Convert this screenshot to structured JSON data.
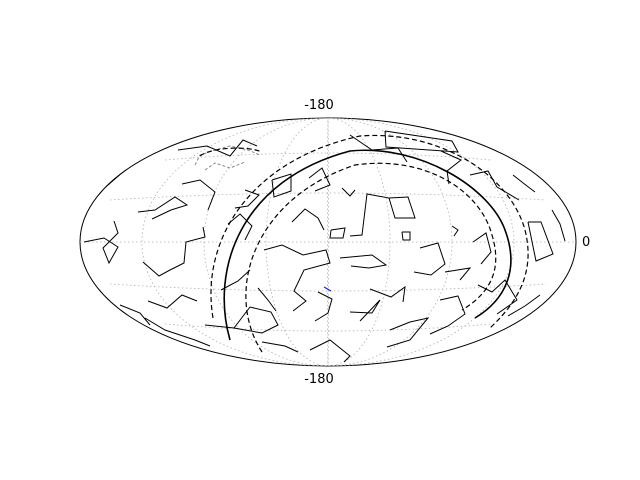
{
  "map": {
    "projection": "aitoff",
    "labels": {
      "top": "-180",
      "bottom": "-180",
      "right": "0"
    },
    "grid": {
      "visible": true,
      "style": "dotted",
      "color": "#b0b0b0"
    },
    "colors": {
      "outline": "#000000",
      "constellation_lines": "#000000",
      "faded_lines": "#888888",
      "marker": "#1f1fff"
    },
    "overlays": [
      {
        "name": "galactic-plane",
        "style": "solid"
      },
      {
        "name": "galactic-plane-offset-1",
        "style": "dashed"
      },
      {
        "name": "galactic-plane-offset-2",
        "style": "dashed"
      },
      {
        "name": "cap-region",
        "style": "dashed"
      }
    ]
  }
}
